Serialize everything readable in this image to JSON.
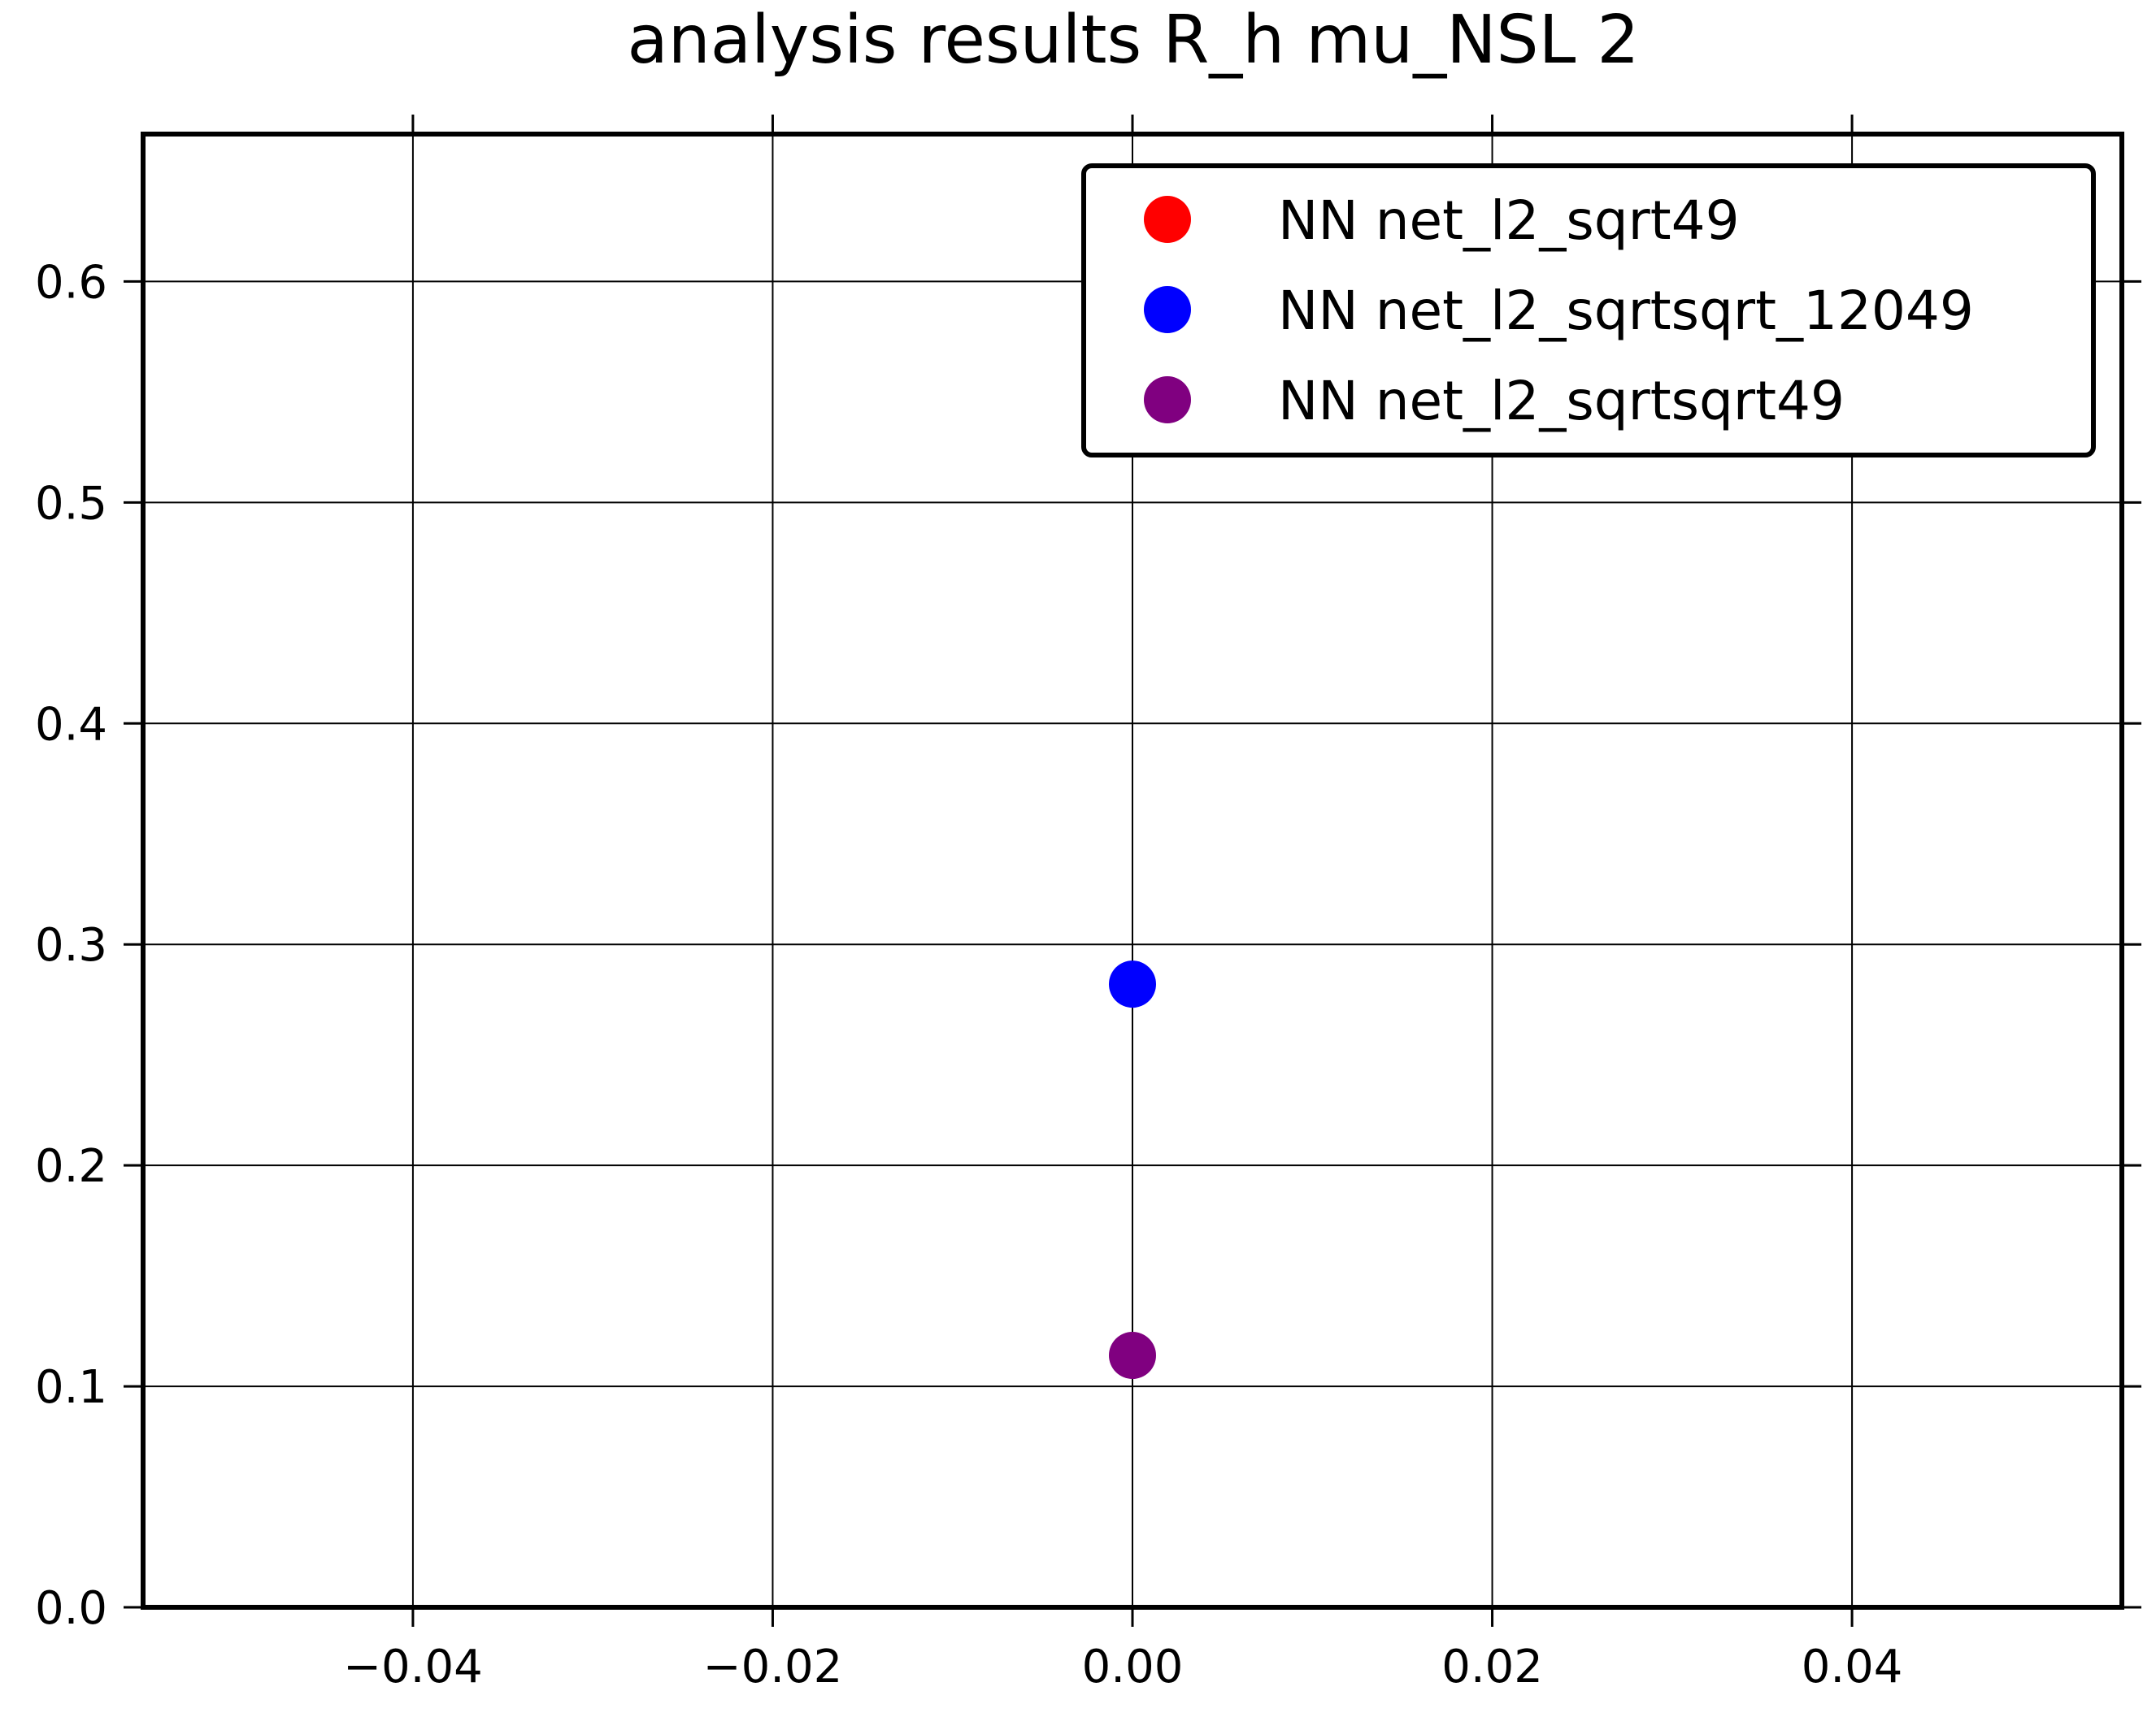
{
  "chart_data": {
    "type": "scatter",
    "title": "analysis results R_h  mu_NSL 2",
    "xlabel": "",
    "ylabel": "",
    "xlim": [
      -0.055,
      0.055
    ],
    "ylim": [
      0.0,
      0.6667
    ],
    "grid": true,
    "legend_position": "top-right",
    "x_ticks": [
      {
        "value": -0.04,
        "label": "−0.04"
      },
      {
        "value": -0.02,
        "label": "−0.02"
      },
      {
        "value": 0.0,
        "label": "0.00"
      },
      {
        "value": 0.02,
        "label": "0.02"
      },
      {
        "value": 0.04,
        "label": "0.04"
      }
    ],
    "y_ticks": [
      {
        "value": 0.0,
        "label": "0.0"
      },
      {
        "value": 0.1,
        "label": "0.1"
      },
      {
        "value": 0.2,
        "label": "0.2"
      },
      {
        "value": 0.3,
        "label": "0.3"
      },
      {
        "value": 0.4,
        "label": "0.4"
      },
      {
        "value": 0.5,
        "label": "0.5"
      },
      {
        "value": 0.6,
        "label": "0.6"
      }
    ],
    "series": [
      {
        "name": "NN net_l2_sqrt49",
        "color": "#ff0000",
        "points": []
      },
      {
        "name": "NN net_l2_sqrtsqrt_12049",
        "color": "#0000ff",
        "points": [
          {
            "x": 0.0,
            "y": 0.282
          }
        ]
      },
      {
        "name": "NN net_l2_sqrtsqrt49",
        "color": "#800080",
        "points": [
          {
            "x": 0.0,
            "y": 0.114
          }
        ]
      }
    ]
  }
}
